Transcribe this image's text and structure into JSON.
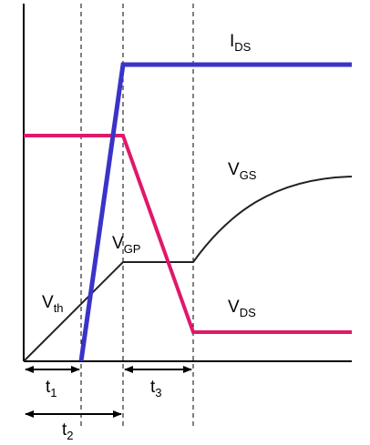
{
  "diagram": {
    "labels": {
      "ids": {
        "main": "I",
        "sub": "DS"
      },
      "vgs": {
        "main": "V",
        "sub": "GS"
      },
      "vgp": {
        "main": "V",
        "sub": "GP"
      },
      "vds": {
        "main": "V",
        "sub": "DS"
      },
      "vth": {
        "main": "V",
        "sub": "th"
      },
      "t1": {
        "main": "t",
        "sub": "1"
      },
      "t2": {
        "main": "t",
        "sub": "2"
      },
      "t3": {
        "main": "t",
        "sub": "3"
      }
    },
    "colors": {
      "ids": "#3a33c8",
      "vds": "#e0186a",
      "vgs": "#222222",
      "axis": "#000000",
      "dashed": "#000000"
    }
  }
}
